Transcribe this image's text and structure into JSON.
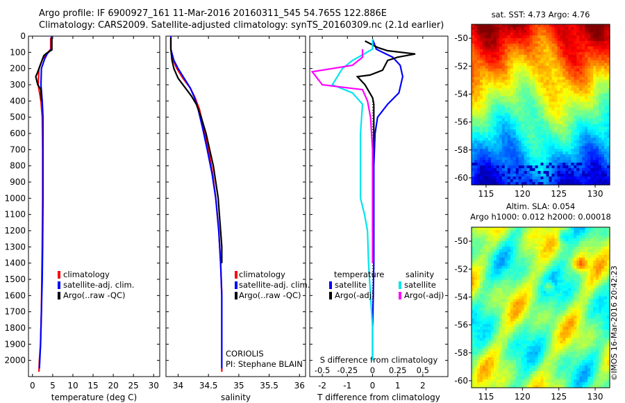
{
  "title": {
    "line1": "Argo profile: IF 6900927_161 11-Mar-2016 20160311_545 54.765S 122.886E",
    "line2": "Climatology: CARS2009. Satellite-adjusted climatology: synTS_20160309.nc (2.1d earlier)"
  },
  "stamp": "©IMOS 16-Mar-2016 20:42:23",
  "colors": {
    "climatology": "#ff0000",
    "satellite_adj": "#0000ff",
    "argo": "#000000",
    "s_satellite": "#00e5ee",
    "s_argo": "#ff00ff"
  },
  "chart_data": [
    {
      "type": "line",
      "name": "temperature panel",
      "xlabel": "temperature (deg C)",
      "ylabel": "",
      "xlim": [
        -1,
        31.5
      ],
      "ylim": [
        2100,
        0
      ],
      "x_ticks": [
        0,
        5,
        10,
        15,
        20,
        25,
        30
      ],
      "y_ticks": [
        0,
        100,
        200,
        300,
        400,
        500,
        600,
        700,
        800,
        900,
        1000,
        1100,
        1200,
        1300,
        1400,
        1500,
        1600,
        1700,
        1800,
        1900,
        2000
      ],
      "legend": [
        "climatology",
        "satellite-adj. clim.",
        "Argo(..raw -QC)"
      ],
      "legend_colors": [
        "#ff0000",
        "#0000ff",
        "#000000"
      ],
      "annotations": [],
      "series": [
        {
          "name": "climatology",
          "color": "#ff0000",
          "points": [
            [
              4.5,
              10
            ],
            [
              4.5,
              80
            ],
            [
              3.5,
              110
            ],
            [
              2.5,
              140
            ],
            [
              1.6,
              200
            ],
            [
              1.4,
              300
            ],
            [
              2.1,
              400
            ],
            [
              2.4,
              500
            ],
            [
              2.5,
              700
            ],
            [
              2.5,
              1000
            ],
            [
              2.4,
              1300
            ],
            [
              2.3,
              1500
            ],
            [
              2.2,
              1700
            ],
            [
              2.0,
              1900
            ],
            [
              1.7,
              2000
            ],
            [
              1.6,
              2070
            ]
          ]
        },
        {
          "name": "satellite-adj. clim.",
          "color": "#0000ff",
          "points": [
            [
              4.7,
              0
            ],
            [
              4.7,
              80
            ],
            [
              3.6,
              110
            ],
            [
              3.0,
              140
            ],
            [
              2.2,
              200
            ],
            [
              2.1,
              300
            ],
            [
              2.4,
              400
            ],
            [
              2.6,
              500
            ],
            [
              2.6,
              700
            ],
            [
              2.6,
              1000
            ],
            [
              2.5,
              1300
            ],
            [
              2.4,
              1500
            ],
            [
              2.2,
              1700
            ],
            [
              2.0,
              1900
            ],
            [
              1.8,
              2000
            ],
            [
              1.7,
              2050
            ]
          ]
        },
        {
          "name": "Argo(..raw -QC)",
          "color": "#000000",
          "points": [
            [
              4.8,
              10
            ],
            [
              4.8,
              85
            ],
            [
              3.5,
              105
            ],
            [
              2.8,
              120
            ],
            [
              1.3,
              220
            ],
            [
              0.8,
              250
            ],
            [
              1.3,
              300
            ],
            [
              2.1,
              330
            ],
            [
              2.2,
              400
            ]
          ]
        }
      ]
    },
    {
      "type": "line",
      "name": "salinity panel",
      "xlabel": "salinity",
      "ylabel": "",
      "xlim": [
        33.8,
        36.1
      ],
      "ylim": [
        2100,
        0
      ],
      "x_ticks": [
        34,
        34.5,
        35,
        35.5,
        36
      ],
      "y_ticks": [
        0,
        100,
        200,
        300,
        400,
        500,
        600,
        700,
        800,
        900,
        1000,
        1100,
        1200,
        1300,
        1400,
        1500,
        1600,
        1700,
        1800,
        1900,
        2000
      ],
      "legend": [
        "climatology",
        "satellite-adj. clim.",
        "Argo(..raw -QC)"
      ],
      "legend_colors": [
        "#ff0000",
        "#0000ff",
        "#000000"
      ],
      "annotations": [
        "CORIOLIS",
        "PI: Stephane BLAIN"
      ],
      "series": [
        {
          "name": "climatology",
          "color": "#ff0000",
          "points": [
            [
              33.88,
              0
            ],
            [
              33.88,
              80
            ],
            [
              33.92,
              150
            ],
            [
              33.98,
              200
            ],
            [
              34.08,
              260
            ],
            [
              34.2,
              320
            ],
            [
              34.28,
              380
            ],
            [
              34.35,
              450
            ],
            [
              34.42,
              560
            ],
            [
              34.5,
              700
            ],
            [
              34.57,
              850
            ],
            [
              34.62,
              1000
            ],
            [
              34.67,
              1200
            ],
            [
              34.7,
              1400
            ],
            [
              34.72,
              1600
            ],
            [
              34.72,
              1800
            ],
            [
              34.72,
              2000
            ],
            [
              34.72,
              2070
            ]
          ]
        },
        {
          "name": "satellite-adj. clim.",
          "color": "#0000ff",
          "points": [
            [
              33.88,
              0
            ],
            [
              33.88,
              80
            ],
            [
              33.93,
              150
            ],
            [
              34.0,
              200
            ],
            [
              34.1,
              260
            ],
            [
              34.2,
              320
            ],
            [
              34.27,
              380
            ],
            [
              34.33,
              450
            ],
            [
              34.4,
              560
            ],
            [
              34.48,
              700
            ],
            [
              34.56,
              850
            ],
            [
              34.62,
              1000
            ],
            [
              34.67,
              1200
            ],
            [
              34.7,
              1400
            ],
            [
              34.72,
              1600
            ],
            [
              34.72,
              1800
            ],
            [
              34.72,
              2000
            ],
            [
              34.72,
              2050
            ]
          ]
        },
        {
          "name": "Argo(..raw -QC)",
          "color": "#000000",
          "points": [
            [
              33.88,
              10
            ],
            [
              33.88,
              80
            ],
            [
              33.9,
              150
            ],
            [
              33.93,
              200
            ],
            [
              34.0,
              260
            ],
            [
              34.12,
              320
            ],
            [
              34.22,
              370
            ],
            [
              34.3,
              420
            ],
            [
              34.38,
              500
            ],
            [
              34.46,
              600
            ],
            [
              34.52,
              700
            ],
            [
              34.58,
              800
            ],
            [
              34.62,
              900
            ],
            [
              34.66,
              1000
            ],
            [
              34.68,
              1100
            ],
            [
              34.7,
              1200
            ],
            [
              34.72,
              1300
            ],
            [
              34.72,
              1400
            ]
          ]
        }
      ]
    },
    {
      "type": "line",
      "name": "difference panel",
      "xlabel": "T difference from climatology",
      "xlabel_top": "S difference from climatology",
      "ylabel": "",
      "xlim": [
        -2.5,
        3
      ],
      "ylim": [
        2100,
        0
      ],
      "x_ticks": [
        -2,
        -1,
        0,
        1,
        2
      ],
      "x_ticks_top": [
        -0.5,
        -0.25,
        0,
        0.25,
        0.5
      ],
      "y_ticks": [
        0,
        100,
        200,
        300,
        400,
        500,
        600,
        700,
        800,
        900,
        1000,
        1100,
        1200,
        1300,
        1400,
        1500,
        1600,
        1700,
        1800,
        1900,
        2000
      ],
      "legend_groups": [
        "temperature",
        "salinity"
      ],
      "legend": [
        "satellite",
        "Argo(-adj)",
        "satellite",
        "Argo(-adj)"
      ],
      "legend_colors": [
        "#0000ff",
        "#000000",
        "#00e5ee",
        "#ff00ff"
      ],
      "series": [
        {
          "name": "temperature satellite",
          "color": "#0000ff",
          "points": [
            [
              0,
              20
            ],
            [
              0.1,
              60
            ],
            [
              0.15,
              80
            ],
            [
              0.4,
              100
            ],
            [
              0.8,
              130
            ],
            [
              1.1,
              180
            ],
            [
              1.2,
              250
            ],
            [
              1.05,
              350
            ],
            [
              0.6,
              420
            ],
            [
              0.2,
              500
            ],
            [
              0.1,
              600
            ],
            [
              0.05,
              800
            ],
            [
              0.05,
              1000
            ],
            [
              0.05,
              1200
            ],
            [
              0.05,
              1400
            ],
            [
              0.03,
              1600
            ],
            [
              0.0,
              1800
            ],
            [
              0,
              2000
            ]
          ]
        },
        {
          "name": "temperature Argo(-adj)",
          "color": "#000000",
          "points": [
            [
              -0.3,
              30
            ],
            [
              0.2,
              70
            ],
            [
              0.6,
              90
            ],
            [
              1.7,
              110
            ],
            [
              1.0,
              130
            ],
            [
              0.6,
              150
            ],
            [
              0.4,
              210
            ],
            [
              -0.1,
              240
            ],
            [
              -0.6,
              250
            ],
            [
              -0.3,
              300
            ],
            [
              0.0,
              380
            ],
            [
              0.05,
              420
            ],
            [
              0.05,
              500
            ],
            [
              0.05,
              600
            ],
            [
              0.03,
              700
            ],
            [
              0,
              800
            ]
          ]
        },
        {
          "name": "salinity satellite",
          "color": "#00e5ee",
          "points": [
            [
              0,
              20
            ],
            [
              0,
              80
            ],
            [
              -0.2,
              150
            ],
            [
              -0.3,
              200
            ],
            [
              -0.4,
              300
            ],
            [
              -0.2,
              350
            ],
            [
              -0.1,
              420
            ],
            [
              -0.12,
              600
            ],
            [
              -0.12,
              800
            ],
            [
              -0.12,
              1000
            ],
            [
              -0.08,
              1100
            ],
            [
              -0.05,
              1200
            ],
            [
              -0.04,
              1400
            ],
            [
              -0.02,
              1600
            ],
            [
              0,
              1800
            ],
            [
              0,
              2000
            ]
          ]
        },
        {
          "name": "salinity Argo(-adj)",
          "color": "#ff00ff",
          "points": [
            [
              -0.1,
              80
            ],
            [
              -0.1,
              130
            ],
            [
              -0.2,
              180
            ],
            [
              -0.6,
              220
            ],
            [
              -0.5,
              300
            ],
            [
              -0.1,
              330
            ],
            [
              -0.05,
              400
            ],
            [
              -0.02,
              500
            ],
            [
              0.0,
              700
            ],
            [
              0.0,
              900
            ],
            [
              0.0,
              1100
            ],
            [
              0.0,
              1300
            ],
            [
              0.0,
              1400
            ]
          ]
        }
      ]
    },
    {
      "type": "heatmap",
      "name": "sat SST map",
      "title": "sat. SST: 4.73  Argo: 4.76",
      "xlim": [
        113,
        132
      ],
      "ylim": [
        -60.5,
        -49
      ],
      "x_ticks": [
        115,
        120,
        125,
        130
      ],
      "y_ticks": [
        -50,
        -52,
        -54,
        -56,
        -58,
        -60
      ],
      "colorscale": "jet",
      "argo_position": [
        122.886,
        -54.765
      ]
    },
    {
      "type": "heatmap",
      "name": "altimetry SLA map",
      "title": "Altim. SLA: 0.054",
      "subtitle": "Argo h1000: 0.012  h2000: 0.00018",
      "xlim": [
        113,
        132
      ],
      "ylim": [
        -60.5,
        -49
      ],
      "x_ticks": [
        115,
        120,
        125,
        130
      ],
      "y_ticks": [
        -50,
        -52,
        -54,
        -56,
        -58,
        -60
      ],
      "colorscale": "jet",
      "argo_position": [
        122.886,
        -54.765
      ]
    }
  ]
}
